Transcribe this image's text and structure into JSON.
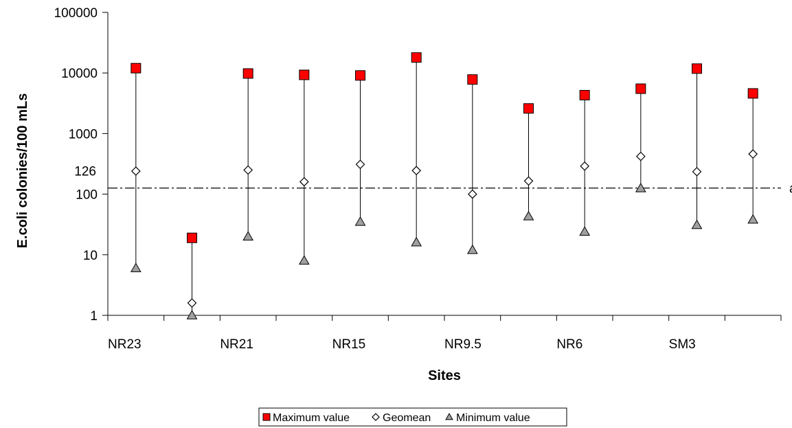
{
  "chart_data": {
    "type": "scatter",
    "title": "",
    "xlabel": "Sites",
    "ylabel": "E.coli colonies/100 mLs",
    "y_scale": "log",
    "ylim": [
      1,
      100000
    ],
    "y_ticks": [
      "1",
      "10",
      "100",
      "1000",
      "10000",
      "100000"
    ],
    "grid": false,
    "x_tick_labels": [
      "NR23",
      "NR21",
      "NR15",
      "NR9.5",
      "NR6",
      "SM3"
    ],
    "reference_line": {
      "value": 126,
      "value_label": "126",
      "end_label": "a"
    },
    "positions": 12,
    "series": [
      {
        "name": "Maximum value",
        "marker": "square",
        "color": "#ff0000",
        "values": [
          12000,
          19,
          9800,
          9300,
          9100,
          18000,
          7800,
          2600,
          4300,
          5500,
          11800,
          4600
        ]
      },
      {
        "name": "Geomean",
        "marker": "diamond",
        "color": "#ffffff",
        "values": [
          240,
          1.6,
          250,
          160,
          310,
          245,
          100,
          165,
          290,
          420,
          235,
          460
        ]
      },
      {
        "name": "Minimum value",
        "marker": "triangle",
        "color": "#a0a0a0",
        "values": [
          6,
          1,
          20,
          8,
          35,
          16,
          12,
          43,
          24,
          125,
          31,
          38
        ]
      }
    ],
    "legend_position": "bottom-center"
  }
}
